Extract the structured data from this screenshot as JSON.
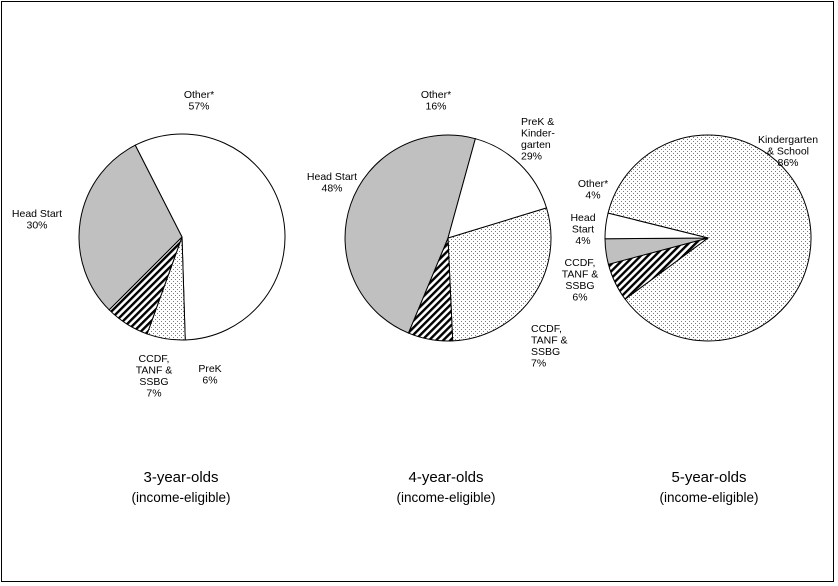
{
  "chart_data": [
    {
      "type": "pie",
      "caption": [
        "3-year-olds",
        "(income-eligible)"
      ],
      "slices": [
        {
          "label": [
            "Other*",
            "57%"
          ],
          "value": 57,
          "fill": "white"
        },
        {
          "label": [
            "PreK",
            "6%"
          ],
          "value": 6,
          "fill": "dots"
        },
        {
          "label": [
            "CCDF,",
            "TANF &",
            "SSBG",
            "7%"
          ],
          "value": 7,
          "fill": "hatch"
        },
        {
          "label": [
            "Head Start",
            "30%"
          ],
          "value": 30,
          "fill": "gray"
        }
      ]
    },
    {
      "type": "pie",
      "caption": [
        "4-year-olds",
        "(income-eligible)"
      ],
      "slices": [
        {
          "label": [
            "PreK &",
            "Kinder-",
            "garten",
            "29%"
          ],
          "value": 29,
          "fill": "dots"
        },
        {
          "label": [
            "CCDF,",
            "TANF &",
            "SSBG",
            "7%"
          ],
          "value": 7,
          "fill": "hatch"
        },
        {
          "label": [
            "Head Start",
            "48%"
          ],
          "value": 48,
          "fill": "gray"
        },
        {
          "label": [
            "Other*",
            "16%"
          ],
          "value": 16,
          "fill": "white"
        }
      ]
    },
    {
      "type": "pie",
      "caption": [
        "5-year-olds",
        "(income-eligible)"
      ],
      "slices": [
        {
          "label": [
            "Kindergarten",
            "& School",
            "86%"
          ],
          "value": 86,
          "fill": "dots"
        },
        {
          "label": [
            "CCDF,",
            "TANF &",
            "SSBG",
            "6%"
          ],
          "value": 6,
          "fill": "hatch"
        },
        {
          "label": [
            "Head",
            "Start",
            "4%"
          ],
          "value": 4,
          "fill": "gray"
        },
        {
          "label": [
            "Other*",
            "4%"
          ],
          "value": 4,
          "fill": "white"
        }
      ]
    }
  ],
  "colors": {
    "gray": "#c0c0c0",
    "white": "#ffffff",
    "stroke": "#000000",
    "dots": "#7a7a7a"
  }
}
